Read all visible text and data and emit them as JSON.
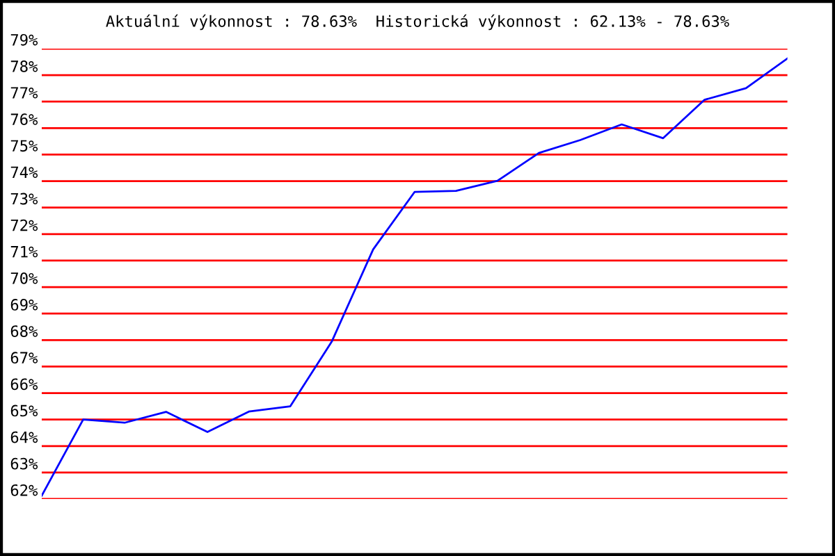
{
  "chart_data": {
    "type": "line",
    "title": "Aktuální výkonnost : 78.63%  Historická výkonnost : 62.13% - 78.63%",
    "categories": [
      null,
      null,
      null,
      null,
      null,
      null,
      null,
      null,
      null,
      null,
      null,
      null,
      null,
      null,
      null,
      null,
      null,
      null,
      null
    ],
    "series": [
      {
        "color": "#0000ff",
        "values": [
          62.13,
          65.0,
          64.88,
          65.29,
          64.53,
          65.3,
          65.5,
          67.94,
          71.42,
          73.59,
          73.63,
          74.01,
          75.06,
          75.55,
          76.14,
          75.62,
          77.07,
          77.51,
          78.63
        ]
      }
    ],
    "ylim": [
      62,
      79
    ],
    "yticks": [
      {
        "value": 62,
        "label": "62%"
      },
      {
        "value": 63,
        "label": "63%"
      },
      {
        "value": 64,
        "label": "64%"
      },
      {
        "value": 65,
        "label": "65%"
      },
      {
        "value": 66,
        "label": "66%"
      },
      {
        "value": 67,
        "label": "67%"
      },
      {
        "value": 68,
        "label": "68%"
      },
      {
        "value": 69,
        "label": "69%"
      },
      {
        "value": 70,
        "label": "70%"
      },
      {
        "value": 71,
        "label": "71%"
      },
      {
        "value": 72,
        "label": "72%"
      },
      {
        "value": 73,
        "label": "73%"
      },
      {
        "value": 74,
        "label": "74%"
      },
      {
        "value": 75,
        "label": "75%"
      },
      {
        "value": 76,
        "label": "76%"
      },
      {
        "value": 77,
        "label": "77%"
      },
      {
        "value": 78,
        "label": "78%"
      },
      {
        "value": 79,
        "label": "79%"
      }
    ],
    "grid": "y",
    "marker": "none",
    "line_style": "solid",
    "legend": false
  }
}
